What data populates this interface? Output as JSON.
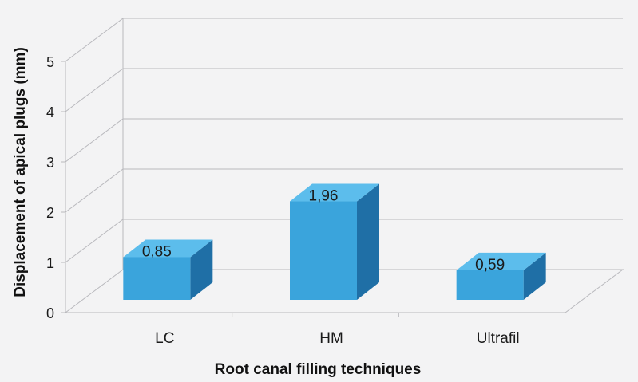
{
  "chart_data": {
    "type": "bar",
    "style": "3d-column",
    "title": "",
    "xlabel": "Root canal filling techniques",
    "ylabel": "Displacement of apical plugs (mm)",
    "categories": [
      "LC",
      "HM",
      "Ultrafil"
    ],
    "values": [
      0.85,
      1.96,
      0.59
    ],
    "data_labels": [
      "0,85",
      "1,96",
      "0,59"
    ],
    "ylim": [
      0,
      5
    ],
    "yticks": [
      0,
      1,
      2,
      3,
      4,
      5
    ],
    "grid": true,
    "legend": "none",
    "colors": {
      "bar_front": "#3aa4dc",
      "bar_top": "#5cbdec",
      "bar_side": "#1f6fa6",
      "grid": "#b9b9bd",
      "background": "#f3f3f4"
    }
  }
}
